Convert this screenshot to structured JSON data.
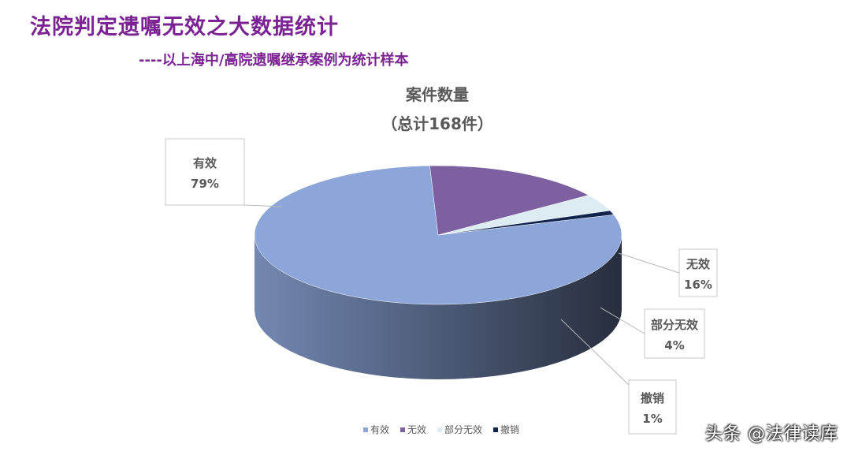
{
  "title": "法院判定遗嘱无效之大数据统计",
  "subtitle": "----以上海中/高院遗嘱继承案例为统计样本",
  "watermark": "头条 @法律读库",
  "chart_data": {
    "type": "pie",
    "title": "案件数量",
    "subtitle": "（总计168件）",
    "slices": [
      {
        "label": "有效",
        "percent": 79,
        "percent_label": "79%",
        "color": "#8ca6d9"
      },
      {
        "label": "无效",
        "percent": 16,
        "percent_label": "16%",
        "color": "#7c60a0"
      },
      {
        "label": "部分无效",
        "percent": 4,
        "percent_label": "4%",
        "color": "#dcecf2"
      },
      {
        "label": "撤销",
        "percent": 1,
        "percent_label": "1%",
        "color": "#10244d"
      }
    ],
    "legend_position": "bottom"
  }
}
